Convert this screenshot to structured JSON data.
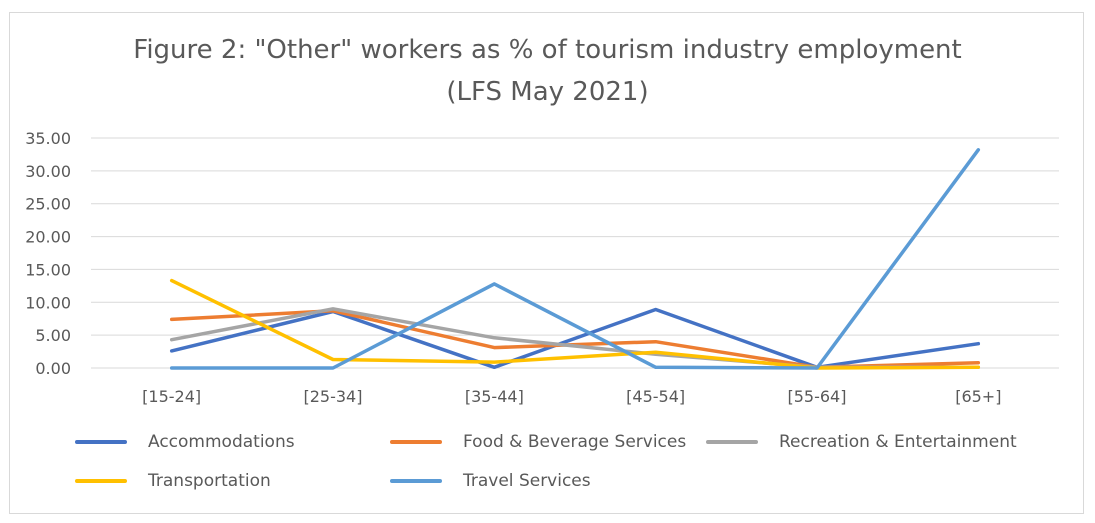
{
  "chart_data": {
    "type": "line",
    "title": "Figure 2: \"Other\" workers as % of tourism industry employment",
    "subtitle": "(LFS May 2021)",
    "categories": [
      "[15-24]",
      "[25-34]",
      "[35-44]",
      "[45-54]",
      "[55-64]",
      "[65+]"
    ],
    "y_ticks": [
      "0.00",
      "5.00",
      "10.00",
      "15.00",
      "20.00",
      "25.00",
      "30.00",
      "35.00"
    ],
    "ylim": [
      0,
      35
    ],
    "grid": true,
    "legend_position": "bottom",
    "series": [
      {
        "name": "Accommodations",
        "color": "#4472c4",
        "values": [
          2.6,
          8.6,
          0.1,
          8.9,
          0.1,
          3.7
        ]
      },
      {
        "name": "Food & Beverage Services",
        "color": "#ed7d31",
        "values": [
          7.4,
          8.7,
          3.1,
          4.0,
          0.1,
          0.8
        ]
      },
      {
        "name": "Recreation & Entertainment",
        "color": "#a5a5a5",
        "values": [
          4.3,
          9.0,
          4.6,
          2.1,
          0.1,
          0.1
        ]
      },
      {
        "name": "Transportation",
        "color": "#ffc000",
        "values": [
          13.3,
          1.3,
          0.9,
          2.4,
          0.0,
          0.1
        ]
      },
      {
        "name": "Travel Services",
        "color": "#5b9bd5",
        "values": [
          0.0,
          0.0,
          12.8,
          0.1,
          0.0,
          33.2
        ]
      }
    ]
  }
}
